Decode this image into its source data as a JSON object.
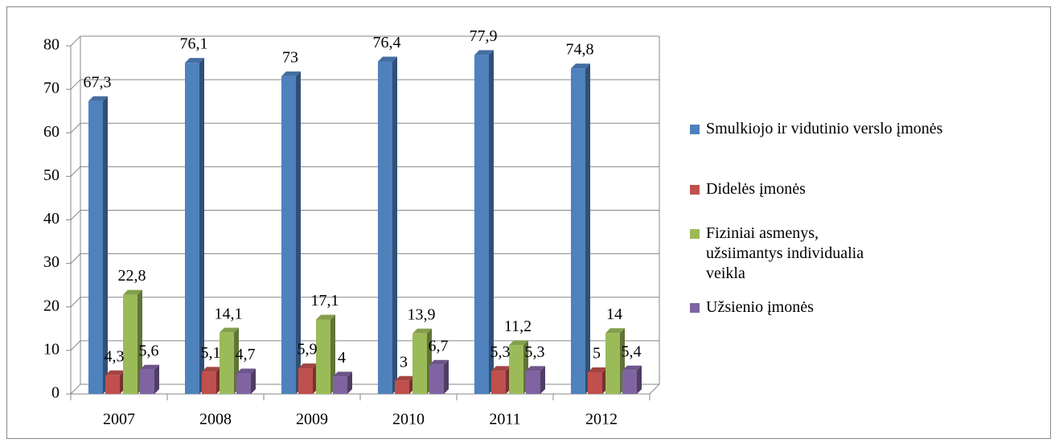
{
  "chart_data": {
    "type": "bar3d",
    "categories": [
      "2007",
      "2008",
      "2009",
      "2010",
      "2011",
      "2012"
    ],
    "series": [
      {
        "name": "Smulkiojo ir vidutinio verslo įmonės",
        "color": "#4f81bd",
        "values": [
          67.3,
          76.1,
          73,
          76.4,
          77.9,
          74.8
        ],
        "value_labels": [
          "67,3",
          "76,1",
          "73",
          "76,4",
          "77,9",
          "74,8"
        ]
      },
      {
        "name": "Didelės įmonės",
        "color": "#c0504d",
        "values": [
          4.3,
          5.1,
          5.9,
          3,
          5.3,
          5
        ],
        "value_labels": [
          "4,3",
          "5,1",
          "5,9",
          "3",
          "5,3",
          "5"
        ]
      },
      {
        "name": "Fiziniai asmenys, užsiimantys individualia veikla",
        "color": "#9bbb59",
        "values": [
          22.8,
          14.1,
          17.1,
          13.9,
          11.2,
          14
        ],
        "value_labels": [
          "22,8",
          "14,1",
          "17,1",
          "13,9",
          "11,2",
          "14"
        ]
      },
      {
        "name": "Užsienio įmonės",
        "color": "#8064a2",
        "values": [
          5.6,
          4.7,
          4,
          6.7,
          5.3,
          5.4
        ],
        "value_labels": [
          "5,6",
          "4,7",
          "4",
          "6,7",
          "5,3",
          "5,4"
        ]
      }
    ],
    "ylim": [
      0,
      80
    ],
    "yticks": [
      0,
      10,
      20,
      30,
      40,
      50,
      60,
      70,
      80
    ],
    "grid": true,
    "legend": "right"
  }
}
